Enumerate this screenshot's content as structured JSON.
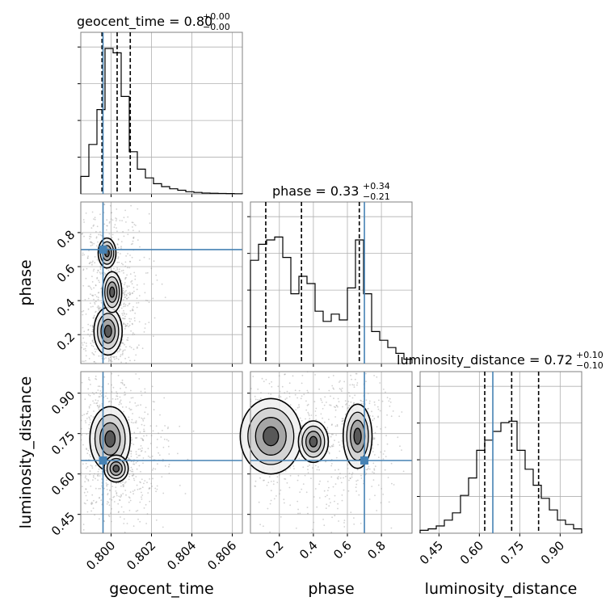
{
  "chart_data": {
    "type": "corner",
    "parameters": [
      "geocent_time",
      "phase",
      "luminosity_distance"
    ],
    "truths": {
      "geocent_time": 0.7996,
      "phase": 0.7,
      "luminosity_distance": 0.65
    },
    "colors": {
      "truth": "#4682b4",
      "hist": "#000000",
      "grid": "#b0b0b0",
      "frame": "#808080",
      "points": "#9a9a9a"
    },
    "titles": [
      {
        "text": "geocent_time = 0.80",
        "sup": "+0.00",
        "sub": "−0.00"
      },
      {
        "text": "phase = 0.33",
        "sup": "+0.34",
        "sub": "−0.21"
      },
      {
        "text": "luminosity_distance = 0.72",
        "sup": "+0.10",
        "sub": "−0.10"
      }
    ],
    "axis_labels": {
      "x": [
        "geocent_time",
        "phase",
        "luminosity_distance"
      ],
      "y": [
        "phase",
        "luminosity_distance"
      ]
    },
    "ranges": {
      "geocent_time": [
        0.7985,
        0.8065
      ],
      "phase": [
        0.03,
        0.98
      ],
      "luminosity_distance": [
        0.38,
        0.98
      ]
    },
    "ticks": {
      "geocent_time": {
        "values": [
          0.8,
          0.802,
          0.804,
          0.806
        ],
        "labels": [
          "0.800",
          "0.802",
          "0.804",
          "0.806"
        ]
      },
      "phase_x": {
        "values": [
          0.2,
          0.4,
          0.6,
          0.8
        ],
        "labels": [
          "0.2",
          "0.4",
          "0.6",
          "0.8"
        ]
      },
      "phase_y": {
        "values": [
          0.2,
          0.4,
          0.6,
          0.8
        ],
        "labels": [
          "0.2",
          "0.4",
          "0.6",
          "0.8"
        ]
      },
      "luminosity_distance": {
        "values": [
          0.45,
          0.6,
          0.75,
          0.9
        ],
        "labels": [
          "0.45",
          "0.60",
          "0.75",
          "0.90"
        ]
      }
    },
    "histograms": {
      "geocent_time": {
        "edges_start": 0.7985,
        "bin_width": 0.0004,
        "counts": [
          0.12,
          0.34,
          0.58,
          1.0,
          0.97,
          0.67,
          0.29,
          0.17,
          0.11,
          0.07,
          0.05,
          0.035,
          0.025,
          0.015,
          0.01,
          0.006,
          0.004,
          0.003,
          0.002,
          0.001
        ],
        "quantiles": [
          0.79955,
          0.8003,
          0.80095
        ]
      },
      "phase": {
        "edges_start": 0.03,
        "bin_width": 0.0475,
        "counts": [
          0.71,
          0.82,
          0.85,
          0.87,
          0.73,
          0.48,
          0.6,
          0.55,
          0.36,
          0.29,
          0.34,
          0.3,
          0.52,
          0.85,
          0.48,
          0.22,
          0.16,
          0.11,
          0.07,
          0.03
        ],
        "quantiles": [
          0.12,
          0.33,
          0.67
        ]
      },
      "luminosity_distance": {
        "edges_start": 0.38,
        "bin_width": 0.03,
        "counts": [
          0.02,
          0.03,
          0.05,
          0.09,
          0.14,
          0.26,
          0.38,
          0.57,
          0.64,
          0.7,
          0.76,
          0.77,
          0.57,
          0.44,
          0.33,
          0.24,
          0.16,
          0.09,
          0.06,
          0.03
        ],
        "quantiles": [
          0.62,
          0.72,
          0.82
        ]
      }
    },
    "density_modes": {
      "geocent_time_vs_phase": [
        {
          "x": 0.79985,
          "y": 0.22,
          "sx": 0.00035,
          "sy": 0.07,
          "w": 1.0
        },
        {
          "x": 0.80005,
          "y": 0.45,
          "sx": 0.0004,
          "sy": 0.1,
          "w": 0.6
        },
        {
          "x": 0.7998,
          "y": 0.68,
          "sx": 0.0004,
          "sy": 0.08,
          "w": 0.55
        }
      ],
      "geocent_time_vs_luminosity_distance": [
        {
          "x": 0.79995,
          "y": 0.73,
          "sx": 0.0005,
          "sy": 0.06,
          "w": 1.0
        },
        {
          "x": 0.80025,
          "y": 0.62,
          "sx": 0.0006,
          "sy": 0.05,
          "w": 0.5
        }
      ],
      "phase_vs_luminosity_distance": [
        {
          "x": 0.15,
          "y": 0.74,
          "sx": 0.09,
          "sy": 0.07,
          "w": 1.0
        },
        {
          "x": 0.4,
          "y": 0.72,
          "sx": 0.08,
          "sy": 0.07,
          "w": 0.55
        },
        {
          "x": 0.66,
          "y": 0.74,
          "sx": 0.05,
          "sy": 0.07,
          "w": 0.85
        }
      ]
    }
  }
}
